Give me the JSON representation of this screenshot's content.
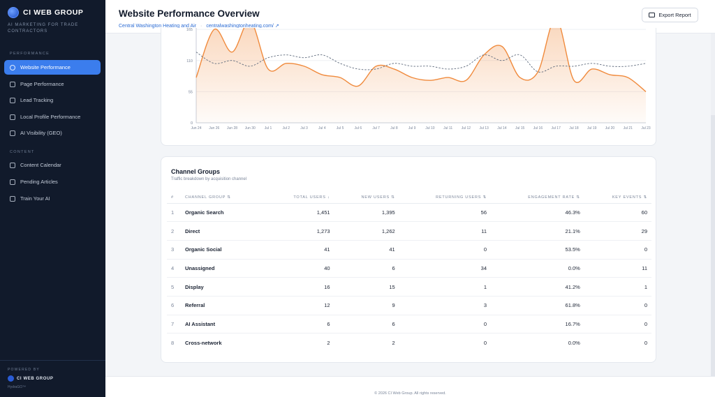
{
  "brand": {
    "name": "CI WEB GROUP",
    "tagline": "AI MARKETING FOR TRADE CONTRACTORS"
  },
  "sidebar": {
    "sections": [
      {
        "label": "PERFORMANCE"
      },
      {
        "label": "CONTENT"
      }
    ],
    "items": [
      {
        "label": "Website Performance",
        "icon": "globe-icon",
        "active": true
      },
      {
        "label": "Page Performance",
        "icon": "bar-chart-icon"
      },
      {
        "label": "Lead Tracking",
        "icon": "phone-icon"
      },
      {
        "label": "Local Profile Performance",
        "icon": "map-pin-icon"
      },
      {
        "label": "AI Visibility (GEO)",
        "icon": "sparkle-icon"
      },
      {
        "label": "Content Calendar",
        "icon": "calendar-icon"
      },
      {
        "label": "Pending Articles",
        "icon": "document-icon"
      },
      {
        "label": "Train Your AI",
        "icon": "brain-icon"
      }
    ],
    "footer": {
      "powered_by": "POWERED BY",
      "logo": "CI WEB GROUP",
      "version": "HydraGO™"
    }
  },
  "header": {
    "title": "Website Performance Overview",
    "client": "Central Washington Heating and Air",
    "separator": "·",
    "domain": "centralwashingtonheating.com/",
    "export_label": "Export Report"
  },
  "chart_data": {
    "type": "line",
    "x": [
      "Jun 24",
      "Jun 26",
      "Jun 28",
      "Jun 30",
      "Jul 1",
      "Jul 2",
      "Jul 3",
      "Jul 4",
      "Jul 5",
      "Jul 6",
      "Jul 7",
      "Jul 8",
      "Jul 9",
      "Jul 10",
      "Jul 11",
      "Jul 12",
      "Jul 13",
      "Jul 14",
      "Jul 15",
      "Jul 16",
      "Jul 17",
      "Jul 18",
      "Jul 19",
      "Jul 20",
      "Jul 21",
      "Jul 23"
    ],
    "y_ticks": [
      0,
      55,
      110,
      165
    ],
    "ylim": [
      0,
      180
    ],
    "series": [
      {
        "name": "",
        "style": "solid-area",
        "color": "#f08a3c",
        "values": [
          80,
          165,
          125,
          180,
          95,
          105,
          100,
          85,
          80,
          65,
          100,
          95,
          80,
          75,
          80,
          75,
          120,
          135,
          80,
          90,
          185,
          75,
          95,
          85,
          80,
          55
        ]
      },
      {
        "name": "",
        "style": "dashed",
        "color": "#5f6b7d",
        "values": [
          125,
          105,
          110,
          100,
          115,
          120,
          115,
          120,
          105,
          95,
          95,
          105,
          100,
          100,
          95,
          100,
          120,
          110,
          120,
          90,
          100,
          100,
          105,
          100,
          100,
          105
        ]
      }
    ]
  },
  "channels": {
    "title": "Channel Groups",
    "subtitle": "Traffic breakdown by acquisition channel",
    "columns": [
      "#",
      "CHANNEL GROUP ⇅",
      "TOTAL USERS ↓",
      "NEW USERS ⇅",
      "RETURNING USERS ⇅",
      "ENGAGEMENT RATE ⇅",
      "KEY EVENTS ⇅"
    ],
    "rows": [
      {
        "n": "1",
        "name": "Organic Search",
        "total": "1,451",
        "new": "1,395",
        "ret": "56",
        "rate": "46.3%",
        "events": "60"
      },
      {
        "n": "2",
        "name": "Direct",
        "total": "1,273",
        "new": "1,262",
        "ret": "11",
        "rate": "21.1%",
        "events": "29"
      },
      {
        "n": "3",
        "name": "Organic Social",
        "total": "41",
        "new": "41",
        "ret": "0",
        "rate": "53.5%",
        "events": "0"
      },
      {
        "n": "4",
        "name": "Unassigned",
        "total": "40",
        "new": "6",
        "ret": "34",
        "rate": "0.0%",
        "events": "11"
      },
      {
        "n": "5",
        "name": "Display",
        "total": "16",
        "new": "15",
        "ret": "1",
        "rate": "41.2%",
        "events": "1"
      },
      {
        "n": "6",
        "name": "Referral",
        "total": "12",
        "new": "9",
        "ret": "3",
        "rate": "61.8%",
        "events": "0"
      },
      {
        "n": "7",
        "name": "AI Assistant",
        "total": "6",
        "new": "6",
        "ret": "0",
        "rate": "16.7%",
        "events": "0"
      },
      {
        "n": "8",
        "name": "Cross-network",
        "total": "2",
        "new": "2",
        "ret": "0",
        "rate": "0.0%",
        "events": "0"
      }
    ]
  },
  "footer": {
    "text": "© 2026 CI Web Group. All rights reserved."
  }
}
